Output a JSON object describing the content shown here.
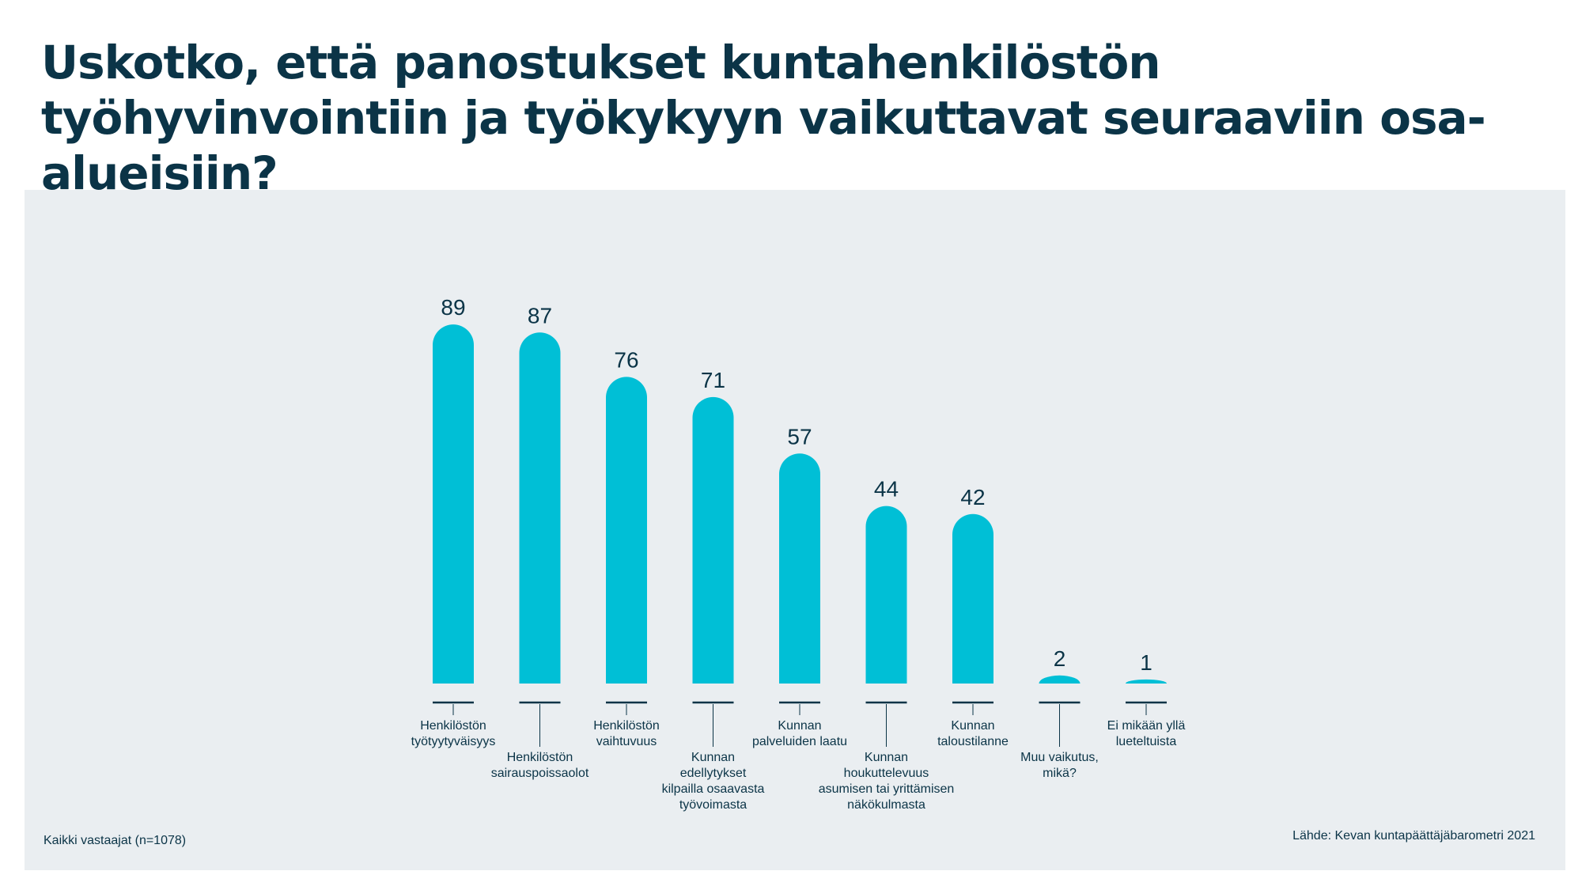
{
  "header": {
    "title": "Uskotko, että panostukset kuntahenkilöstön työhyvinvointiin ja työkykyyn vaikuttavat seuraaviin osa-alueisiin?"
  },
  "footer": {
    "note": "Kaikki vastaajat (n=1078)",
    "source": "Lähde: Kevan kuntapäättäjäbarometri 2021"
  },
  "colors": {
    "bar": "#00bfd6",
    "text": "#0b3447",
    "panel": "#eaeef1"
  },
  "chart_data": {
    "type": "bar",
    "categories": [
      [
        "Henkilöstön",
        "työtyytyväisyys"
      ],
      [
        "Henkilöstön",
        "sairauspoissaolot"
      ],
      [
        "Henkilöstön",
        "vaihtuvuus"
      ],
      [
        "Kunnan",
        "edellytykset",
        "kilpailla osaavasta",
        "työvoimasta"
      ],
      [
        "Kunnan",
        "palveluiden laatu"
      ],
      [
        "Kunnan",
        "houkuttelevuus",
        "asumisen tai yrittämisen",
        "näkökulmasta"
      ],
      [
        "Kunnan",
        "taloustilanne"
      ],
      [
        "Muu vaikutus,",
        "mikä?"
      ],
      [
        "Ei mikään yllä",
        "lueteltuista"
      ]
    ],
    "values": [
      89,
      87,
      76,
      71,
      57,
      44,
      42,
      2,
      1
    ],
    "value_labels": [
      "89",
      "87",
      "76",
      "71",
      "57",
      "44",
      "42",
      "2",
      "1"
    ],
    "ylim": [
      0,
      100
    ],
    "xlabel": "",
    "ylabel": "",
    "grid": false,
    "legend": "none"
  }
}
